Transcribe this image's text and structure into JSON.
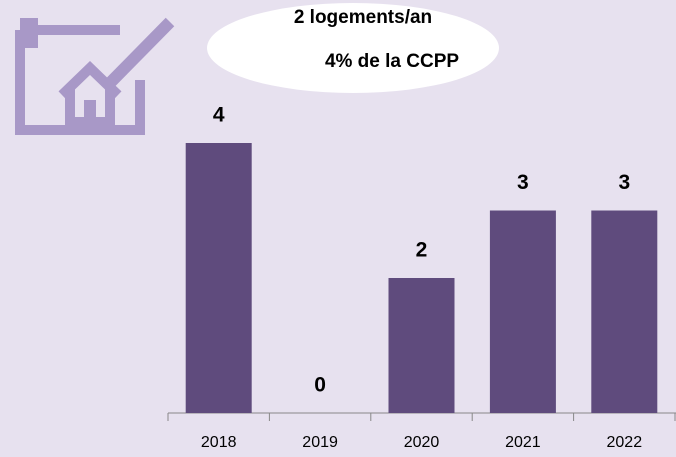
{
  "chart_data": {
    "type": "bar",
    "annotations": [
      "2 logements/an",
      "4% de la CCPP"
    ],
    "categories": [
      "2018",
      "2019",
      "2020",
      "2021",
      "2022"
    ],
    "values": [
      4,
      0,
      2,
      3,
      3
    ],
    "color": "#5f4b7d"
  }
}
